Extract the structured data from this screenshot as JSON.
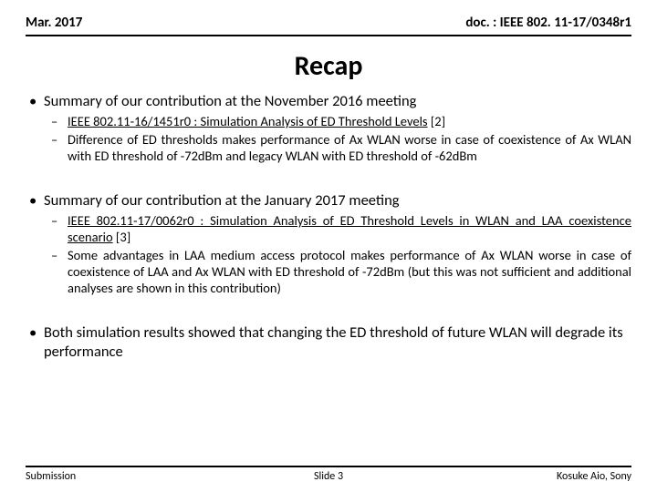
{
  "header": {
    "left": "Mar. 2017",
    "right": "doc. : IEEE 802. 11-17/0348r1"
  },
  "title": "Recap",
  "bullets": {
    "b1": "Summary of our contribution at the November 2016 meeting",
    "b1_1_link": "IEEE 802.11-16/1451r0 : Simulation Analysis of ED Threshold Levels",
    "b1_1_tail": " [2]",
    "b1_2": "Difference of ED thresholds makes performance of Ax WLAN worse in case of coexistence of Ax WLAN with ED threshold of -72dBm and legacy WLAN with ED threshold of -62dBm",
    "b2": "Summary of our contribution at the January 2017 meeting",
    "b2_1_link": "IEEE 802.11-17/0062r0 : Simulation Analysis of ED Threshold Levels in WLAN and LAA coexistence scenario",
    "b2_1_tail": " [3]",
    "b2_2": "Some advantages in LAA medium access protocol makes performance of Ax WLAN worse in case of coexistence of LAA and Ax WLAN with ED threshold of -72dBm (but this was not sufficient and additional analyses are shown in this contribution)",
    "b3": "Both simulation results showed that changing the ED threshold of future WLAN will degrade its performance"
  },
  "footer": {
    "left": "Submission",
    "center": "Slide 3",
    "right": "Kosuke Aio, Sony"
  }
}
